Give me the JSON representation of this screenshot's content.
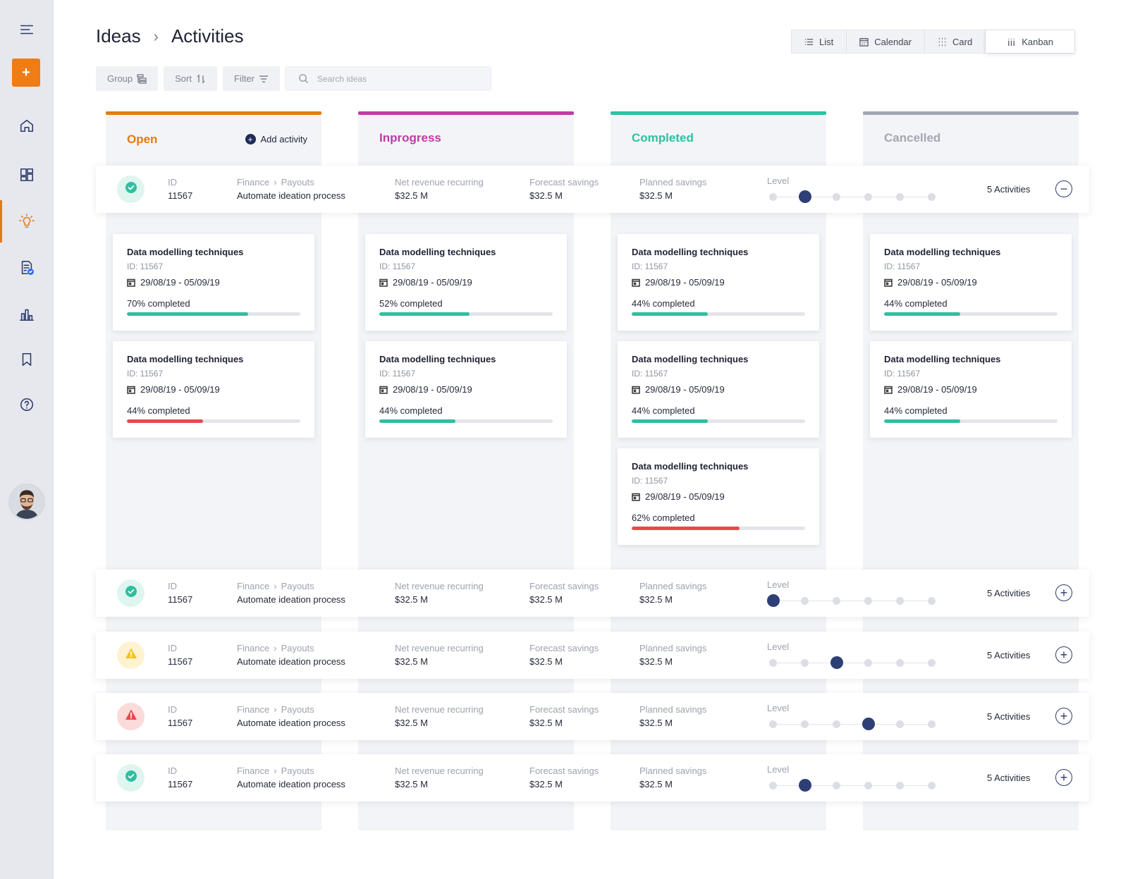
{
  "breadcrumb": {
    "root": "Ideas",
    "current": "Activities"
  },
  "views": [
    {
      "label": "List",
      "icon": "list-icon"
    },
    {
      "label": "Calendar",
      "icon": "calendar-icon"
    },
    {
      "label": "Card",
      "icon": "grid-icon"
    },
    {
      "label": "Kanban",
      "icon": "kanban-icon"
    }
  ],
  "toolbar": {
    "group": "Group",
    "sort": "Sort",
    "filter": "Filter"
  },
  "search": {
    "placeholder": "Search ideas"
  },
  "columns": [
    {
      "title": "Open",
      "color": "#e37b14",
      "add_label": "Add activity"
    },
    {
      "title": "Inprogress",
      "color": "#c23aa8"
    },
    {
      "title": "Completed",
      "color": "#2fbfa0"
    },
    {
      "title": "Cancelled",
      "color": "#a3a7b4"
    }
  ],
  "row_labels": {
    "id": "ID",
    "category": "Finance",
    "subcategory": "Payouts",
    "net_revenue": "Net revenue recurring",
    "forecast": "Forecast savings",
    "planned": "Planned savings",
    "level": "Level"
  },
  "rows": [
    {
      "status": "success",
      "status_color": "#2fbfa0",
      "id": "11567",
      "name": "Automate ideation process",
      "net_revenue": "$32.5 M",
      "forecast": "$32.5 M",
      "planned": "$32.5 M",
      "level": 2,
      "activities": "5 Activities",
      "expanded": true
    },
    {
      "status": "success",
      "status_color": "#2fbfa0",
      "id": "11567",
      "name": "Automate ideation process",
      "net_revenue": "$32.5 M",
      "forecast": "$32.5 M",
      "planned": "$32.5 M",
      "level": 1,
      "activities": "5 Activities",
      "expanded": false
    },
    {
      "status": "warning",
      "status_color": "#f2c40f",
      "id": "11567",
      "name": "Automate ideation process",
      "net_revenue": "$32.5 M",
      "forecast": "$32.5 M",
      "planned": "$32.5 M",
      "level": 3,
      "activities": "5 Activities",
      "expanded": false
    },
    {
      "status": "error",
      "status_color": "#e8484d",
      "id": "11567",
      "name": "Automate ideation process",
      "net_revenue": "$32.5 M",
      "forecast": "$32.5 M",
      "planned": "$32.5 M",
      "level": 4,
      "activities": "5 Activities",
      "expanded": false
    },
    {
      "status": "success",
      "status_color": "#2fbfa0",
      "id": "11567",
      "name": "Automate ideation process",
      "net_revenue": "$32.5 M",
      "forecast": "$32.5 M",
      "planned": "$32.5 M",
      "level": 2,
      "activities": "5 Activities",
      "expanded": false
    }
  ],
  "cards": [
    [
      {
        "title": "Data modelling techniques",
        "id": "ID: 11567",
        "date": "29/08/19 - 05/09/19",
        "progress": 70,
        "progress_label": "70% completed",
        "bar_color": "#2fbfa0"
      },
      {
        "title": "Data modelling techniques",
        "id": "ID: 11567",
        "date": "29/08/19 - 05/09/19",
        "progress": 44,
        "progress_label": "44% completed",
        "bar_color": "#e8484d"
      }
    ],
    [
      {
        "title": "Data modelling techniques",
        "id": "ID: 11567",
        "date": "29/08/19 - 05/09/19",
        "progress": 52,
        "progress_label": "52% completed",
        "bar_color": "#2fbfa0"
      },
      {
        "title": "Data modelling techniques",
        "id": "ID: 11567",
        "date": "29/08/19 - 05/09/19",
        "progress": 44,
        "progress_label": "44% completed",
        "bar_color": "#2fbfa0"
      }
    ],
    [
      {
        "title": "Data modelling techniques",
        "id": "ID: 11567",
        "date": "29/08/19 - 05/09/19",
        "progress": 44,
        "progress_label": "44% completed",
        "bar_color": "#2fbfa0"
      },
      {
        "title": "Data modelling techniques",
        "id": "ID: 11567",
        "date": "29/08/19 - 05/09/19",
        "progress": 44,
        "progress_label": "44% completed",
        "bar_color": "#2fbfa0"
      },
      {
        "title": "Data modelling techniques",
        "id": "ID: 11567",
        "date": "29/08/19 - 05/09/19",
        "progress": 62,
        "progress_label": "62% completed",
        "bar_color": "#e8484d"
      }
    ],
    [
      {
        "title": "Data modelling techniques",
        "id": "ID: 11567",
        "date": "29/08/19 - 05/09/19",
        "progress": 44,
        "progress_label": "44% completed",
        "bar_color": "#2fbfa0"
      },
      {
        "title": "Data modelling techniques",
        "id": "ID: 11567",
        "date": "29/08/19 - 05/09/19",
        "progress": 44,
        "progress_label": "44% completed",
        "bar_color": "#2fbfa0"
      }
    ]
  ],
  "sidebar": {
    "items": [
      {
        "icon": "menu-icon"
      },
      {
        "icon": "add-icon",
        "label": "+"
      },
      {
        "icon": "home-icon"
      },
      {
        "icon": "dashboard-icon"
      },
      {
        "icon": "lightbulb-icon",
        "active": true
      },
      {
        "icon": "document-check-icon"
      },
      {
        "icon": "bar-chart-icon"
      },
      {
        "icon": "bookmark-icon"
      },
      {
        "icon": "help-icon"
      }
    ]
  }
}
